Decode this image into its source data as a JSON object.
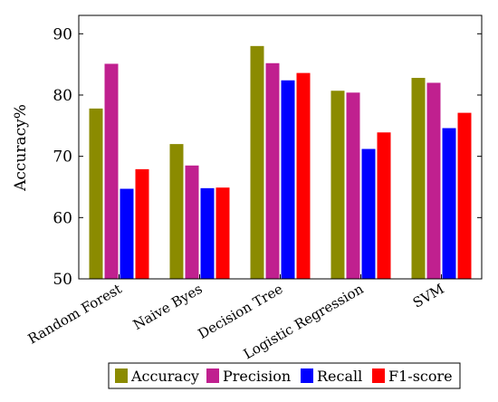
{
  "chart_data": {
    "type": "bar",
    "title": "",
    "xlabel": "",
    "ylabel": "Accuracy%",
    "ylim": [
      50,
      93
    ],
    "yticks": [
      50,
      60,
      70,
      80,
      90
    ],
    "grid": false,
    "legend_position": "bottom",
    "categories": [
      "Random Forest",
      "Naive Byes",
      "Decision Tree",
      "Logistic Regression",
      "SVM"
    ],
    "series": [
      {
        "name": "Accuracy",
        "color": "#8B8B00",
        "values": [
          77.8,
          72.0,
          88.0,
          80.7,
          82.8
        ]
      },
      {
        "name": "Precision",
        "color": "#C0208F",
        "values": [
          85.1,
          68.5,
          85.2,
          80.4,
          82.0
        ]
      },
      {
        "name": "Recall",
        "color": "#0000FF",
        "values": [
          64.7,
          64.8,
          82.4,
          71.2,
          74.6
        ]
      },
      {
        "name": "F1-score",
        "color": "#FF0000",
        "values": [
          67.9,
          64.9,
          83.6,
          73.9,
          77.1
        ]
      }
    ]
  }
}
